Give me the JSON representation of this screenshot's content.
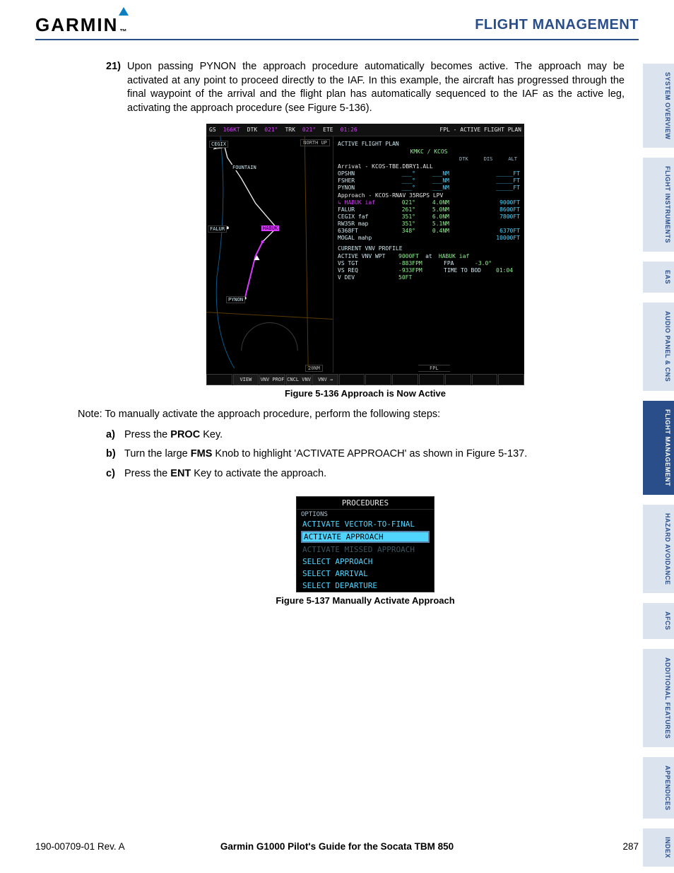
{
  "header": {
    "brand": "GARMIN",
    "section": "FLIGHT MANAGEMENT"
  },
  "tabs": [
    {
      "label": "SYSTEM OVERVIEW",
      "active": false
    },
    {
      "label": "FLIGHT INSTRUMENTS",
      "active": false
    },
    {
      "label": "EAS",
      "active": false
    },
    {
      "label": "AUDIO PANEL & CNS",
      "active": false
    },
    {
      "label": "FLIGHT MANAGEMENT",
      "active": true
    },
    {
      "label": "HAZARD AVOIDANCE",
      "active": false
    },
    {
      "label": "AFCS",
      "active": false
    },
    {
      "label": "ADDITIONAL FEATURES",
      "active": false
    },
    {
      "label": "APPENDICES",
      "active": false
    },
    {
      "label": "INDEX",
      "active": false
    }
  ],
  "step": {
    "num": "21)",
    "text": "Upon passing PYNON the approach procedure automatically becomes active.  The approach may be activated at any point to proceed directly to the IAF.  In this example, the aircraft has progressed through the final waypoint of the arrival and the flight plan has automatically sequenced to the IAF as the active leg, activating the approach procedure (see Figure 5-136)."
  },
  "fig1": {
    "caption": "Figure 5-136  Approach is Now Active",
    "topbar": {
      "gs_lbl": "GS",
      "gs": "166KT",
      "dtk_lbl": "DTK",
      "dtk": "021°",
      "trk_lbl": "TRK",
      "trk": "021°",
      "ete_lbl": "ETE",
      "ete": "01:26",
      "title": "FPL - ACTIVE FLIGHT PLAN"
    },
    "map": {
      "northup": "NORTH UP",
      "labels": {
        "cegix": "CEGIX",
        "fountain": "FOUNTAIN",
        "falur": "FALUR",
        "habuk": "HABUK",
        "pynon": "PYNON"
      },
      "scale": "20NM",
      "colors": {
        "route_past": "#d83aff",
        "route_active": "#d83aff",
        "route_future": "#e8e8e8",
        "highway": "#7a4a00",
        "river": "#0a7fc2"
      }
    },
    "fpl": {
      "box1": "ACTIVE FLIGHT PLAN",
      "plan": "KMKC / KCOS",
      "hdr": {
        "dtk": "DTK",
        "dis": "DIS",
        "alt": "ALT"
      },
      "arrival_lbl": "Arrival - KCOS-TBE.DBRY1.ALL",
      "arrival": [
        {
          "n": "OPSHN",
          "dtk": "___°",
          "dis": "___NM",
          "alt": "_____FT"
        },
        {
          "n": "FSHER",
          "dtk": "___°",
          "dis": "___NM",
          "alt": "_____FT"
        },
        {
          "n": "PYNON",
          "dtk": "___°",
          "dis": "___NM",
          "alt": "_____FT"
        }
      ],
      "approach_lbl": "Approach - KCOS-RNAV 35RGPS LPV",
      "approach": [
        {
          "n": "HABUK iaf",
          "dtk": "021°",
          "dis": "4.0NM",
          "alt": "9000FT",
          "active": true
        },
        {
          "n": "FALUR",
          "dtk": "261°",
          "dis": "5.0NM",
          "alt": "8600FT"
        },
        {
          "n": "CEGIX faf",
          "dtk": "351°",
          "dis": "6.0NM",
          "alt": "7800FT"
        },
        {
          "n": "RW35R map",
          "dtk": "351°",
          "dis": "5.1NM",
          "alt": ""
        },
        {
          "n": "6368FT",
          "dtk": "348°",
          "dis": "0.4NM",
          "alt": "6370FT"
        },
        {
          "n": "MOGAL mahp",
          "dtk": "",
          "dis": "",
          "alt": "10000FT"
        }
      ],
      "vnv_title": "CURRENT VNV PROFILE",
      "vnv": {
        "active_wpt_lbl": "ACTIVE VNV WPT",
        "active_wpt": "9000FT",
        "at": "at",
        "wpt": "HABUK iaf",
        "vs_tgt_lbl": "VS TGT",
        "vs_tgt": "-883FPM",
        "fpa_lbl": "FPA",
        "fpa": "-3.0°",
        "vs_req_lbl": "VS REQ",
        "vs_req": "-933FPM",
        "ttb_lbl": "TIME TO BOD",
        "ttb": "01:04",
        "vdev_lbl": "V DEV",
        "vdev": "50FT"
      },
      "fpl_tab": "FPL"
    },
    "softkeys": [
      "",
      "VIEW",
      "VNV PROF",
      "CNCL VNV",
      "VNV →",
      "",
      "",
      "",
      "",
      "",
      "",
      ""
    ]
  },
  "note": "Note:  To manually activate the approach procedure, perform the following steps:",
  "substeps": {
    "a": {
      "lbl": "a)",
      "pre": "Press the ",
      "key": "PROC",
      "post": " Key."
    },
    "b": {
      "lbl": "b)",
      "pre": "Turn the large ",
      "key": "FMS",
      "post": " Knob to highlight 'ACTIVATE APPROACH' as shown in Figure 5-137."
    },
    "c": {
      "lbl": "c)",
      "pre": "Press the ",
      "key": "ENT",
      "post": " Key to activate the approach."
    }
  },
  "fig2": {
    "caption": "Figure 5-137  Manually Activate Approach",
    "title": "PROCEDURES",
    "options_lbl": "OPTIONS",
    "items": [
      {
        "t": "ACTIVATE VECTOR-TO-FINAL",
        "state": "normal"
      },
      {
        "t": "ACTIVATE APPROACH",
        "state": "selected"
      },
      {
        "t": "ACTIVATE MISSED APPROACH",
        "state": "dim"
      },
      {
        "t": "SELECT APPROACH",
        "state": "normal"
      },
      {
        "t": "SELECT ARRIVAL",
        "state": "normal"
      },
      {
        "t": "SELECT DEPARTURE",
        "state": "normal"
      }
    ]
  },
  "footer": {
    "rev": "190-00709-01  Rev. A",
    "center": "Garmin G1000 Pilot's Guide for the Socata TBM 850",
    "page": "287"
  }
}
